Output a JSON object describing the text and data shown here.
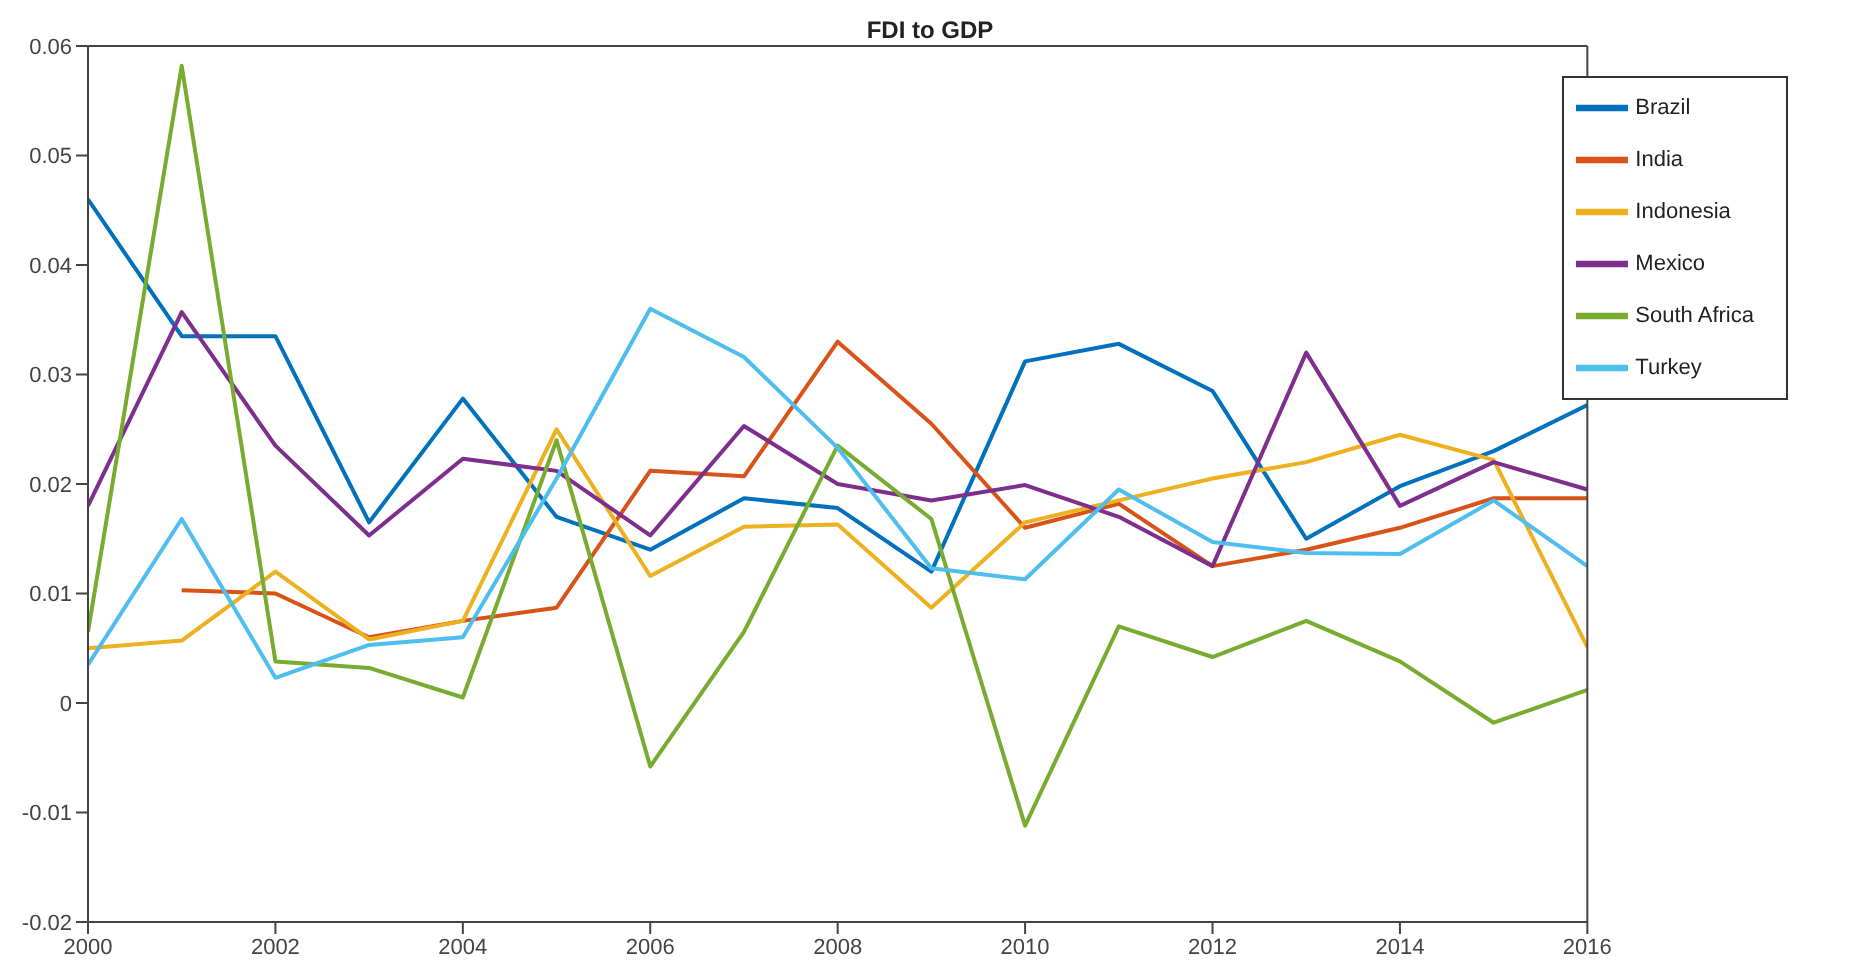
{
  "chart_data": {
    "type": "line",
    "title": "FDI to GDP",
    "x": [
      2000,
      2001,
      2002,
      2003,
      2004,
      2005,
      2006,
      2007,
      2008,
      2009,
      2010,
      2011,
      2012,
      2013,
      2014,
      2015,
      2016
    ],
    "series": [
      {
        "name": "Brazil",
        "color": "#0072bd",
        "values": [
          0.046,
          0.0335,
          0.0335,
          0.0165,
          0.0278,
          0.017,
          0.014,
          0.0187,
          0.0178,
          0.012,
          0.0312,
          0.0328,
          0.0285,
          0.015,
          0.0198,
          0.023,
          0.0272
        ]
      },
      {
        "name": "India",
        "color": "#d95319",
        "values": [
          null,
          0.0103,
          0.01,
          0.006,
          0.0075,
          0.0087,
          0.0212,
          0.0207,
          0.033,
          0.0255,
          0.016,
          0.0182,
          0.0125,
          0.014,
          0.016,
          0.0187,
          0.0187
        ]
      },
      {
        "name": "Indonesia",
        "color": "#edb120",
        "values": [
          0.005,
          0.0057,
          0.012,
          0.0058,
          0.0075,
          0.025,
          0.0116,
          0.0161,
          0.0163,
          0.0087,
          0.0165,
          0.0185,
          0.0205,
          0.022,
          0.0245,
          0.0222,
          0.0051
        ]
      },
      {
        "name": "Mexico",
        "color": "#7e2f8e",
        "values": [
          0.018,
          0.0357,
          0.0235,
          0.0153,
          0.0223,
          0.0212,
          0.0153,
          0.0253,
          0.02,
          0.0185,
          0.0199,
          0.017,
          0.0125,
          0.032,
          0.018,
          0.022,
          0.0195
        ]
      },
      {
        "name": "South Africa",
        "color": "#77ac30",
        "values": [
          0.0065,
          0.0582,
          0.0038,
          0.0032,
          0.0005,
          0.024,
          -0.0058,
          0.0065,
          0.0235,
          0.0168,
          -0.0112,
          0.007,
          0.0042,
          0.0075,
          0.0038,
          -0.0018,
          0.0012
        ]
      },
      {
        "name": "Turkey",
        "color": "#4dbeee",
        "values": [
          0.0035,
          0.0168,
          0.0023,
          0.0053,
          0.006,
          0.0205,
          0.036,
          0.0316,
          0.0233,
          0.0123,
          0.0113,
          0.0195,
          0.0147,
          0.0137,
          0.0136,
          0.0185,
          0.0125
        ]
      }
    ],
    "xlim": [
      2000,
      2016
    ],
    "xticks": [
      2000,
      2002,
      2004,
      2006,
      2008,
      2010,
      2012,
      2014,
      2016
    ],
    "ylim": [
      -0.02,
      0.06
    ],
    "yticks": [
      -0.02,
      -0.01,
      0,
      0.01,
      0.02,
      0.03,
      0.04,
      0.05,
      0.06
    ],
    "legend": "top right",
    "grid": false,
    "marker": "none",
    "line_style": "solid"
  }
}
